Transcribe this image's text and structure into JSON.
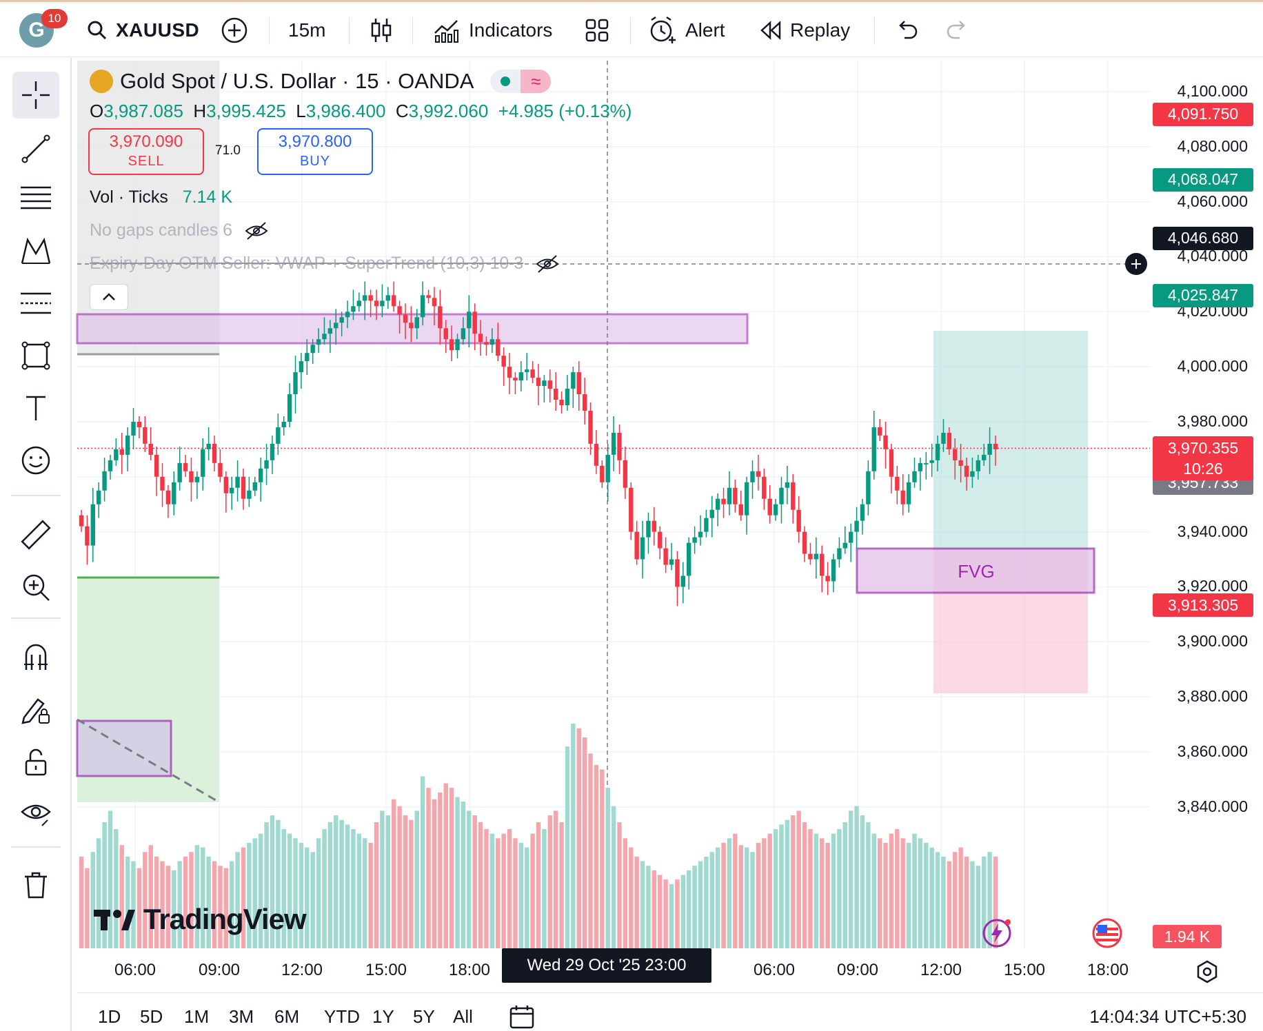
{
  "header": {
    "avatar_letter": "G",
    "notification_count": "10",
    "symbol": "XAUUSD",
    "interval": "15m",
    "indicators_label": "Indicators",
    "alert_label": "Alert",
    "replay_label": "Replay"
  },
  "legend": {
    "title": "Gold Spot / U.S. Dollar · 15 · OANDA",
    "status_icon": "≈",
    "ohlc": {
      "o_key": "O",
      "o": "3,987.085",
      "h_key": "H",
      "h": "3,995.425",
      "l_key": "L",
      "l": "3,986.400",
      "c_key": "C",
      "c": "3,992.060",
      "change": "+4.985 (+0.13%)"
    },
    "sell_price": "3,970.090",
    "sell_label": "SELL",
    "spread": "71.0",
    "buy_price": "3,970.800",
    "buy_label": "BUY",
    "vol_label": "Vol · Ticks",
    "vol_value": "7.14 K",
    "indicator1": "No gaps candles 6",
    "indicator2": "Expiry-Day OTM Seller: VWAP + SuperTrend (10,3) 10 3"
  },
  "chart_data": {
    "type": "candlestick",
    "symbol": "XAUUSD",
    "interval": "15m",
    "ylim": [
      3830,
      4110
    ],
    "y_ticks": [
      "4,100.000",
      "4,080.000",
      "4,060.000",
      "4,040.000",
      "4,020.000",
      "4,000.000",
      "3,980.000",
      "3,960.000",
      "3,940.000",
      "3,920.000",
      "3,900.000",
      "3,880.000",
      "3,860.000",
      "3,840.000"
    ],
    "x_ticks": [
      "06:00",
      "09:00",
      "12:00",
      "15:00",
      "18:00",
      "06:00",
      "09:00",
      "12:00",
      "15:00",
      "18:00"
    ],
    "crosshair_time": "Wed 29 Oct '25  23:00",
    "price_tags": [
      {
        "value": "4,091.750",
        "color": "#f23645"
      },
      {
        "value": "4,068.047",
        "color": "#089981"
      },
      {
        "value": "4,046.680",
        "color": "#131722"
      },
      {
        "value": "4,025.847",
        "color": "#089981"
      },
      {
        "value": "3,970.355",
        "color": "#f23645"
      },
      {
        "value": "3,957.733",
        "color": "#787b86"
      },
      {
        "value": "3,913.305",
        "color": "#f23645"
      }
    ],
    "countdown": "10:26",
    "volume_tag": "1.94 K",
    "fvg_label": "FVG",
    "closes": [
      3942,
      3935,
      3950,
      3955,
      3962,
      3966,
      3970,
      3968,
      3975,
      3980,
      3978,
      3972,
      3968,
      3960,
      3955,
      3950,
      3958,
      3965,
      3962,
      3958,
      3960,
      3970,
      3972,
      3965,
      3960,
      3954,
      3956,
      3960,
      3952,
      3955,
      3958,
      3963,
      3966,
      3972,
      3978,
      3980,
      3990,
      3998,
      4002,
      4005,
      4008,
      4010,
      4012,
      4014,
      4016,
      4018,
      4020,
      4022,
      4024,
      4026,
      4024,
      4022,
      4024,
      4026,
      4022,
      4019,
      4016,
      4014,
      4018,
      4026,
      4025,
      4022,
      4014,
      4010,
      4006,
      4010,
      4014,
      4020,
      4012,
      4009,
      4008,
      4010,
      4004,
      4000,
      3996,
      3995,
      3998,
      3999,
      3996,
      3993,
      3995,
      3992,
      3988,
      3986,
      3992,
      3998,
      3990,
      3984,
      3972,
      3964,
      3958,
      3968,
      3976,
      3966,
      3956,
      3940,
      3930,
      3938,
      3944,
      3940,
      3934,
      3928,
      3930,
      3920,
      3924,
      3936,
      3938,
      3940,
      3945,
      3948,
      3952,
      3950,
      3956,
      3950,
      3946,
      3958,
      3962,
      3960,
      3952,
      3946,
      3950,
      3956,
      3958,
      3948,
      3940,
      3932,
      3930,
      3932,
      3924,
      3922,
      3930,
      3934,
      3936,
      3940,
      3944,
      3950,
      3962,
      3978,
      3975,
      3970,
      3960,
      3955,
      3950,
      3958,
      3962,
      3965,
      3965,
      3966,
      3972,
      3976,
      3970,
      3966,
      3964,
      3960,
      3962,
      3966,
      3968,
      3972,
      3970
    ],
    "volumes": [
      40,
      35,
      42,
      48,
      55,
      60,
      52,
      45,
      40,
      38,
      35,
      42,
      45,
      40,
      38,
      36,
      34,
      38,
      40,
      42,
      45,
      44,
      40,
      38,
      36,
      35,
      38,
      42,
      44,
      46,
      48,
      50,
      55,
      58,
      56,
      52,
      50,
      48,
      46,
      44,
      42,
      48,
      52,
      55,
      58,
      56,
      54,
      52,
      50,
      48,
      46,
      55,
      60,
      58,
      65,
      62,
      58,
      56,
      60,
      75,
      70,
      65,
      68,
      72,
      70,
      66,
      64,
      60,
      58,
      55,
      52,
      50,
      48,
      50,
      52,
      48,
      46,
      44,
      50,
      55,
      52,
      58,
      60,
      55,
      88,
      98,
      96,
      92,
      85,
      80,
      78,
      70,
      62,
      55,
      48,
      44,
      40,
      38,
      36,
      34,
      32,
      30,
      28,
      30,
      32,
      34,
      36,
      38,
      40,
      42,
      44,
      46,
      48,
      50,
      45,
      44,
      42,
      46,
      48,
      50,
      52,
      54,
      56,
      58,
      60,
      55,
      52,
      50,
      48,
      46,
      50,
      52,
      55,
      60,
      62,
      58,
      55,
      50,
      48,
      46,
      50,
      52,
      48,
      46,
      50,
      48,
      46,
      44,
      42,
      40,
      38,
      42,
      44,
      40,
      38,
      36,
      40,
      42,
      40
    ]
  },
  "footer": {
    "ranges": [
      "1D",
      "5D",
      "1M",
      "3M",
      "6M",
      "YTD",
      "1Y",
      "5Y",
      "All"
    ],
    "clock": "14:04:34 UTC+5:30",
    "brand": "TradingView"
  }
}
